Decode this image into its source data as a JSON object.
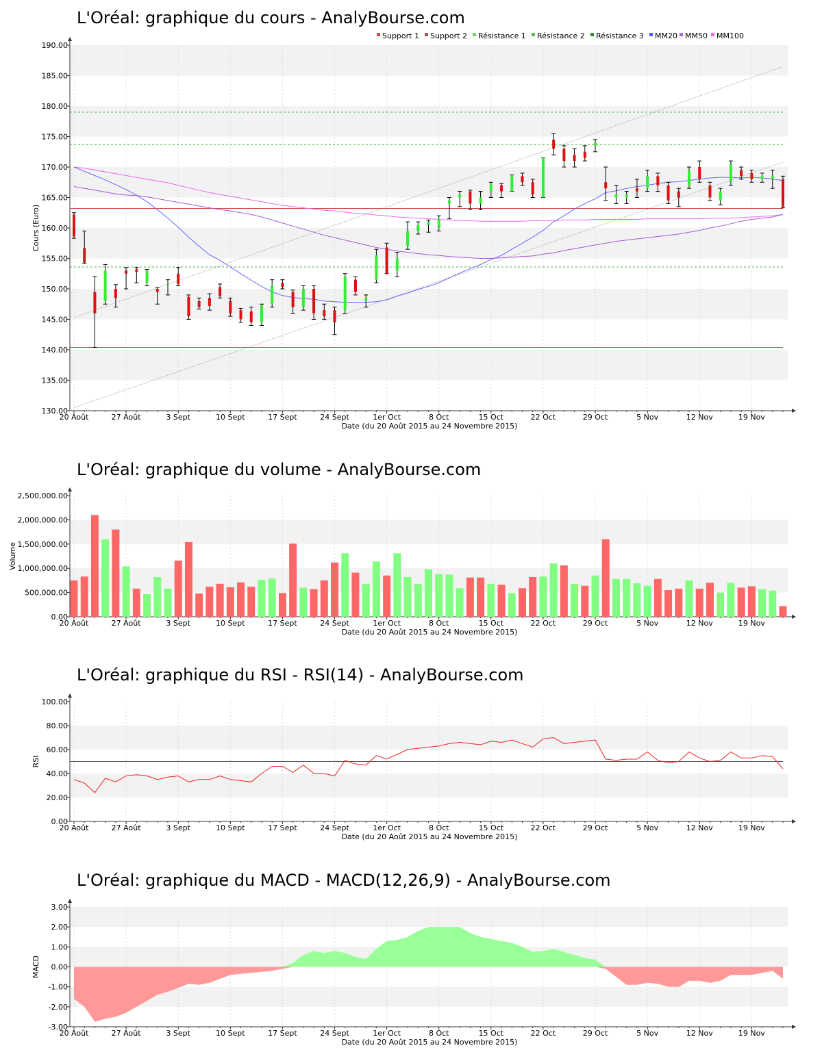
{
  "titles": {
    "price": "L'Oréal: graphique du cours - AnalyBourse.com",
    "volume": "L'Oréal: graphique du volume - AnalyBourse.com",
    "rsi": "L'Oréal: graphique du RSI - RSI(14) - AnalyBourse.com",
    "macd": "L'Oréal: graphique du MACD - MACD(12,26,9) - AnalyBourse.com"
  },
  "xlabel": "Date (du 20 Août 2015 au 24 Novembre 2015)",
  "date_ticks": [
    {
      "label": "20 Août",
      "i": 0
    },
    {
      "label": "27 Août",
      "i": 5
    },
    {
      "label": "3 Sept",
      "i": 10
    },
    {
      "label": "10 Sept",
      "i": 15
    },
    {
      "label": "17 Sept",
      "i": 20
    },
    {
      "label": "24 Sept",
      "i": 25
    },
    {
      "label": "1er Oct",
      "i": 30
    },
    {
      "label": "8 Oct",
      "i": 35
    },
    {
      "label": "15 Oct",
      "i": 40
    },
    {
      "label": "22 Oct",
      "i": 45
    },
    {
      "label": "29 Oct",
      "i": 50
    },
    {
      "label": "5 Nov",
      "i": 55
    },
    {
      "label": "12 Nov",
      "i": 60
    },
    {
      "label": "19 Nov",
      "i": 65
    }
  ],
  "colors": {
    "up": "#33ee33",
    "down": "#dd1111",
    "vol_up": "#80ff80",
    "vol_down": "#ff6666",
    "mm20": "#6666ff",
    "mm50": "#aa55dd",
    "mm100": "#ee66ee",
    "support": "#cc4444",
    "resistance": "#44aa44",
    "channel": "#aaaaaa",
    "rsi": "#ee2222",
    "macd_pos": "#99ff99",
    "macd_neg": "#ff9999"
  },
  "chart_data": [
    {
      "type": "candlestick",
      "title": "L'Oréal: graphique du cours - AnalyBourse.com",
      "ylabel": "Cours (Euro)",
      "ylim": [
        130,
        190
      ],
      "yticks": [
        "130.00",
        "135.00",
        "140.00",
        "145.00",
        "150.00",
        "155.00",
        "160.00",
        "165.00",
        "170.00",
        "175.00",
        "180.00",
        "185.00",
        "190.00"
      ],
      "legend": [
        "Support 1",
        "Support 2",
        "Résistance 1",
        "Résistance 2",
        "Résistance 3",
        "MM20",
        "MM50",
        "MM100"
      ],
      "legend_colors": [
        "#ee4444",
        "#aa5555",
        "#66dd66",
        "#55bb55",
        "#338833",
        "#5555ff",
        "#aa66dd",
        "#ee66ee"
      ],
      "support_levels": [
        140.4,
        163.2
      ],
      "resistance_levels": [
        153.6,
        173.7,
        179.0
      ],
      "candles": [
        {
          "o": 162.2,
          "h": 162.5,
          "l": 158.3,
          "c": 158.6
        },
        {
          "o": 156.7,
          "h": 159.5,
          "l": 154.2,
          "c": 154.3
        },
        {
          "o": 149.5,
          "h": 152.0,
          "l": 140.4,
          "c": 146.0
        },
        {
          "o": 148.0,
          "h": 154.0,
          "l": 147.5,
          "c": 153.0
        },
        {
          "o": 150.0,
          "h": 150.7,
          "l": 147.0,
          "c": 148.5
        },
        {
          "o": 153.0,
          "h": 153.5,
          "l": 150.0,
          "c": 152.5
        },
        {
          "o": 153.2,
          "h": 153.5,
          "l": 151.0,
          "c": 152.8
        },
        {
          "o": 151.0,
          "h": 153.2,
          "l": 150.5,
          "c": 153.0
        },
        {
          "o": 150.0,
          "h": 150.2,
          "l": 147.5,
          "c": 149.5
        },
        {
          "o": 150.5,
          "h": 151.5,
          "l": 149.0,
          "c": 150.7
        },
        {
          "o": 152.5,
          "h": 153.5,
          "l": 150.5,
          "c": 150.8
        },
        {
          "o": 148.7,
          "h": 149.0,
          "l": 145.0,
          "c": 145.5
        },
        {
          "o": 148.0,
          "h": 148.5,
          "l": 146.7,
          "c": 147.0
        },
        {
          "o": 148.5,
          "h": 149.2,
          "l": 146.5,
          "c": 147.2
        },
        {
          "o": 150.3,
          "h": 150.8,
          "l": 148.5,
          "c": 148.8
        },
        {
          "o": 148.0,
          "h": 148.5,
          "l": 145.5,
          "c": 146.0
        },
        {
          "o": 146.5,
          "h": 146.8,
          "l": 144.5,
          "c": 145.0
        },
        {
          "o": 146.3,
          "h": 147.0,
          "l": 144.0,
          "c": 144.5
        },
        {
          "o": 144.5,
          "h": 147.5,
          "l": 144.0,
          "c": 147.3
        },
        {
          "o": 147.5,
          "h": 151.5,
          "l": 147.0,
          "c": 150.5
        },
        {
          "o": 151.0,
          "h": 151.5,
          "l": 150.0,
          "c": 150.3
        },
        {
          "o": 149.5,
          "h": 149.8,
          "l": 146.0,
          "c": 147.0
        },
        {
          "o": 147.0,
          "h": 150.5,
          "l": 146.5,
          "c": 150.0
        },
        {
          "o": 150.0,
          "h": 150.5,
          "l": 145.0,
          "c": 146.0
        },
        {
          "o": 146.5,
          "h": 147.5,
          "l": 145.0,
          "c": 145.5
        },
        {
          "o": 146.5,
          "h": 147.0,
          "l": 142.5,
          "c": 144.5
        },
        {
          "o": 146.5,
          "h": 152.5,
          "l": 146.0,
          "c": 152.0
        },
        {
          "o": 151.5,
          "h": 152.0,
          "l": 149.0,
          "c": 149.5
        },
        {
          "o": 148.0,
          "h": 149.0,
          "l": 147.0,
          "c": 148.5
        },
        {
          "o": 151.5,
          "h": 156.5,
          "l": 151.0,
          "c": 155.5
        },
        {
          "o": 156.8,
          "h": 157.5,
          "l": 152.5,
          "c": 152.5
        },
        {
          "o": 153.0,
          "h": 156.0,
          "l": 152.0,
          "c": 155.0
        },
        {
          "o": 157.0,
          "h": 161.0,
          "l": 156.5,
          "c": 159.5
        },
        {
          "o": 159.5,
          "h": 161.0,
          "l": 159.0,
          "c": 160.5
        },
        {
          "o": 160.5,
          "h": 161.3,
          "l": 159.3,
          "c": 161.0
        },
        {
          "o": 160.0,
          "h": 162.0,
          "l": 159.5,
          "c": 161.5
        },
        {
          "o": 164.0,
          "h": 165.0,
          "l": 161.5,
          "c": 164.5
        },
        {
          "o": 165.0,
          "h": 166.0,
          "l": 163.5,
          "c": 165.5
        },
        {
          "o": 166.0,
          "h": 166.2,
          "l": 163.0,
          "c": 164.0
        },
        {
          "o": 164.0,
          "h": 166.0,
          "l": 163.0,
          "c": 165.0
        },
        {
          "o": 166.0,
          "h": 167.5,
          "l": 165.0,
          "c": 167.2
        },
        {
          "o": 167.0,
          "h": 167.3,
          "l": 165.0,
          "c": 166.0
        },
        {
          "o": 166.0,
          "h": 168.7,
          "l": 166.0,
          "c": 168.5
        },
        {
          "o": 168.5,
          "h": 169.0,
          "l": 167.0,
          "c": 167.5
        },
        {
          "o": 167.5,
          "h": 168.0,
          "l": 165.0,
          "c": 165.5
        },
        {
          "o": 165.0,
          "h": 171.5,
          "l": 165.0,
          "c": 171.5
        },
        {
          "o": 174.5,
          "h": 175.5,
          "l": 172.0,
          "c": 173.0
        },
        {
          "o": 173.0,
          "h": 173.5,
          "l": 170.0,
          "c": 171.0
        },
        {
          "o": 172.0,
          "h": 173.0,
          "l": 170.0,
          "c": 171.0
        },
        {
          "o": 172.5,
          "h": 173.5,
          "l": 171.0,
          "c": 171.5
        },
        {
          "o": 173.5,
          "h": 174.5,
          "l": 172.5,
          "c": 174.0
        },
        {
          "o": 167.5,
          "h": 170.0,
          "l": 164.5,
          "c": 166.5
        },
        {
          "o": 165.0,
          "h": 167.0,
          "l": 164.0,
          "c": 165.5
        },
        {
          "o": 165.0,
          "h": 166.0,
          "l": 164.0,
          "c": 165.5
        },
        {
          "o": 166.5,
          "h": 168.0,
          "l": 165.0,
          "c": 166.0
        },
        {
          "o": 166.5,
          "h": 169.5,
          "l": 166.0,
          "c": 168.5
        },
        {
          "o": 168.5,
          "h": 169.0,
          "l": 166.0,
          "c": 167.0
        },
        {
          "o": 167.0,
          "h": 167.5,
          "l": 164.0,
          "c": 164.5
        },
        {
          "o": 166.0,
          "h": 166.5,
          "l": 163.5,
          "c": 165.0
        },
        {
          "o": 167.0,
          "h": 170.0,
          "l": 166.5,
          "c": 169.5
        },
        {
          "o": 170.0,
          "h": 171.0,
          "l": 167.5,
          "c": 168.0
        },
        {
          "o": 167.0,
          "h": 167.5,
          "l": 164.5,
          "c": 165.0
        },
        {
          "o": 164.5,
          "h": 166.5,
          "l": 163.8,
          "c": 166.0
        },
        {
          "o": 167.5,
          "h": 171.0,
          "l": 167.0,
          "c": 170.5
        },
        {
          "o": 169.5,
          "h": 170.0,
          "l": 168.0,
          "c": 168.5
        },
        {
          "o": 169.0,
          "h": 169.5,
          "l": 167.5,
          "c": 168.0
        },
        {
          "o": 168.0,
          "h": 169.0,
          "l": 167.5,
          "c": 168.5
        },
        {
          "o": 168.0,
          "h": 169.5,
          "l": 166.5,
          "c": 168.5
        },
        {
          "o": 168.0,
          "h": 168.5,
          "l": 163.3,
          "c": 163.5
        }
      ],
      "mm20": [
        170.0,
        169.3,
        168.6,
        167.9,
        167.1,
        166.3,
        165.4,
        164.3,
        163.0,
        161.6,
        160.1,
        158.5,
        157.0,
        155.6,
        154.7,
        153.6,
        152.5,
        151.4,
        150.4,
        149.5,
        148.9,
        148.6,
        148.4,
        148.3,
        148.0,
        147.9,
        147.8,
        147.8,
        147.8,
        147.9,
        148.2,
        148.8,
        149.3,
        149.9,
        150.4,
        151.0,
        151.8,
        152.6,
        153.3,
        154.0,
        154.8,
        155.5,
        156.5,
        157.5,
        158.5,
        159.6,
        161.0,
        162.0,
        163.1,
        164.0,
        164.8,
        165.8,
        166.1,
        166.5,
        166.8,
        167.0,
        167.3,
        167.5,
        167.6,
        167.8,
        168.0,
        168.2,
        168.3,
        168.3,
        168.2,
        168.3,
        168.2,
        168.0,
        167.8
      ],
      "mm50": [
        166.8,
        166.5,
        166.2,
        165.9,
        165.6,
        165.4,
        165.3,
        165.1,
        164.8,
        164.5,
        164.2,
        163.9,
        163.6,
        163.3,
        163.0,
        162.8,
        162.5,
        162.2,
        161.8,
        161.3,
        160.8,
        160.3,
        159.8,
        159.3,
        158.8,
        158.4,
        158.0,
        157.6,
        157.2,
        156.8,
        156.5,
        156.2,
        156.0,
        155.8,
        155.6,
        155.5,
        155.3,
        155.2,
        155.1,
        155.0,
        155.0,
        155.1,
        155.2,
        155.3,
        155.4,
        155.7,
        155.9,
        156.3,
        156.6,
        156.9,
        157.2,
        157.5,
        157.8,
        158.0,
        158.2,
        158.4,
        158.6,
        158.8,
        159.0,
        159.3,
        159.6,
        160.0,
        160.3,
        160.7,
        161.1,
        161.4,
        161.6,
        161.8,
        162.2
      ],
      "mm100": [
        170.0,
        169.8,
        169.5,
        169.2,
        168.9,
        168.6,
        168.3,
        168.0,
        167.7,
        167.4,
        167.0,
        166.6,
        166.2,
        165.8,
        165.5,
        165.2,
        164.9,
        164.6,
        164.3,
        164.0,
        163.7,
        163.5,
        163.3,
        163.1,
        162.9,
        162.8,
        162.6,
        162.4,
        162.3,
        162.1,
        162.0,
        161.8,
        161.7,
        161.6,
        161.5,
        161.4,
        161.3,
        161.2,
        161.2,
        161.1,
        161.1,
        161.1,
        161.1,
        161.1,
        161.2,
        161.2,
        161.2,
        161.3,
        161.3,
        161.3,
        161.4,
        161.4,
        161.4,
        161.4,
        161.4,
        161.5,
        161.5,
        161.5,
        161.5,
        161.5,
        161.5,
        161.6,
        161.6,
        161.6,
        161.7,
        161.8,
        161.9,
        162.0,
        162.2
      ],
      "channel_upper": [
        [
          0,
          145.3
        ],
        [
          68,
          186.5
        ]
      ],
      "channel_lower": [
        [
          0,
          130.5
        ],
        [
          68,
          170.8
        ]
      ]
    },
    {
      "type": "bar",
      "title": "L'Oréal: graphique du volume - AnalyBourse.com",
      "ylabel": "Volume",
      "ylim": [
        0,
        2500000
      ],
      "yticks": [
        "0.00",
        "500,000.00",
        "1,000,000.00",
        "1,500,000.00",
        "2,000,000.00",
        "2,500,000.00"
      ],
      "values": [
        750000,
        830000,
        2100000,
        1600000,
        1800000,
        1040000,
        580000,
        470000,
        820000,
        580000,
        1160000,
        1540000,
        480000,
        620000,
        680000,
        610000,
        710000,
        620000,
        760000,
        790000,
        490000,
        1510000,
        600000,
        570000,
        750000,
        1120000,
        1310000,
        910000,
        680000,
        1140000,
        850000,
        1310000,
        820000,
        680000,
        980000,
        880000,
        870000,
        590000,
        810000,
        810000,
        680000,
        660000,
        490000,
        590000,
        820000,
        830000,
        1100000,
        1060000,
        680000,
        640000,
        850000,
        1600000,
        780000,
        780000,
        690000,
        640000,
        780000,
        550000,
        580000,
        750000,
        580000,
        700000,
        500000,
        700000,
        600000,
        630000,
        570000,
        540000,
        220000
      ],
      "up": [
        false,
        false,
        false,
        true,
        false,
        true,
        false,
        true,
        true,
        true,
        false,
        false,
        false,
        false,
        false,
        false,
        false,
        false,
        true,
        true,
        false,
        false,
        true,
        false,
        false,
        false,
        true,
        false,
        true,
        true,
        false,
        true,
        true,
        true,
        true,
        true,
        true,
        true,
        false,
        false,
        true,
        false,
        true,
        false,
        false,
        true,
        true,
        false,
        true,
        false,
        true,
        false,
        true,
        true,
        true,
        true,
        false,
        false,
        false,
        true,
        false,
        false,
        true,
        true,
        false,
        false,
        true,
        true,
        false
      ]
    },
    {
      "type": "line",
      "title": "L'Oréal: graphique du RSI - RSI(14) - AnalyBourse.com",
      "ylabel": "RSI",
      "ylim": [
        0,
        100
      ],
      "yticks": [
        "0.00",
        "20.00",
        "40.00",
        "60.00",
        "80.00",
        "100.00"
      ],
      "reference": 50,
      "values": [
        35,
        32,
        24,
        36,
        33,
        38,
        39,
        38,
        35,
        37,
        38,
        33,
        35,
        35,
        38,
        35,
        34,
        33,
        40,
        46,
        46,
        41,
        47,
        40,
        40,
        38,
        51,
        48,
        47,
        55,
        52,
        56,
        60,
        61,
        62,
        63,
        65,
        66,
        65,
        64,
        67,
        66,
        68,
        65,
        62,
        69,
        70,
        65,
        66,
        67,
        68,
        52,
        51,
        52,
        52,
        58,
        51,
        49,
        50,
        58,
        53,
        50,
        51,
        58,
        53,
        53,
        55,
        54,
        44
      ]
    },
    {
      "type": "area",
      "title": "L'Oréal: graphique du MACD - MACD(12,26,9) - AnalyBourse.com",
      "ylabel": "MACD",
      "ylim": [
        -3,
        3
      ],
      "yticks": [
        "-3.00",
        "-2.00",
        "-1.00",
        "0.00",
        "1.00",
        "2.00",
        "3.00"
      ],
      "values": [
        -1.6,
        -2.0,
        -2.75,
        -2.6,
        -2.5,
        -2.3,
        -2.0,
        -1.7,
        -1.4,
        -1.25,
        -1.05,
        -0.85,
        -0.9,
        -0.8,
        -0.6,
        -0.4,
        -0.35,
        -0.3,
        -0.25,
        -0.2,
        -0.1,
        0.2,
        0.6,
        0.8,
        0.7,
        0.8,
        0.7,
        0.5,
        0.4,
        0.9,
        1.3,
        1.35,
        1.5,
        1.8,
        2.0,
        2.0,
        2.0,
        2.0,
        1.7,
        1.5,
        1.4,
        1.3,
        1.2,
        1.0,
        0.75,
        0.8,
        0.9,
        0.75,
        0.6,
        0.45,
        0.35,
        -0.1,
        -0.5,
        -0.9,
        -0.9,
        -0.8,
        -0.85,
        -1.0,
        -1.0,
        -0.7,
        -0.7,
        -0.8,
        -0.7,
        -0.4,
        -0.4,
        -0.4,
        -0.3,
        -0.2,
        -0.6
      ]
    }
  ]
}
